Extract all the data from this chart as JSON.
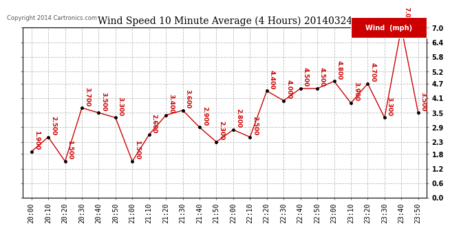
{
  "title": "Wind Speed 10 Minute Average (4 Hours) 20140324",
  "copyright": "Copyright 2014 Cartronics.com",
  "legend_label": "Wind  (mph)",
  "legend_bg": "#cc0000",
  "legend_fg": "#ffffff",
  "x_labels": [
    "20:00",
    "20:10",
    "20:20",
    "20:30",
    "20:40",
    "20:50",
    "21:00",
    "21:10",
    "21:20",
    "21:30",
    "21:40",
    "21:50",
    "22:00",
    "22:10",
    "22:20",
    "22:30",
    "22:40",
    "22:50",
    "23:00",
    "23:10",
    "23:20",
    "23:30",
    "23:40",
    "23:50"
  ],
  "values": [
    1.9,
    2.5,
    1.5,
    3.7,
    3.5,
    3.3,
    1.5,
    2.6,
    3.4,
    3.6,
    2.9,
    2.3,
    2.8,
    2.5,
    4.4,
    4.0,
    4.5,
    4.5,
    4.8,
    3.9,
    4.7,
    3.3,
    7.0,
    3.5
  ],
  "annotations": [
    "1.900",
    "2.500",
    "1.500",
    "3.700",
    "3.500",
    "3.300",
    "1.500",
    "2.600",
    "3.400",
    "3.600",
    "2.900",
    "2.300",
    "2.800",
    "2.500",
    "4.400",
    "4.000",
    "4.500",
    "4.500",
    "4.800",
    "3.900",
    "4.700",
    "3.300",
    "7.000",
    "3.500"
  ],
  "line_color": "#cc0000",
  "marker_color": "#000000",
  "annotation_color": "#cc0000",
  "ylim": [
    0.0,
    7.0
  ],
  "yticks": [
    0.0,
    0.6,
    1.2,
    1.8,
    2.3,
    2.9,
    3.5,
    4.1,
    4.7,
    5.2,
    5.8,
    6.4,
    7.0
  ],
  "bg_color": "#ffffff",
  "grid_color": "#bbbbbb",
  "title_fontsize": 10,
  "annotation_fontsize": 6.5,
  "axis_fontsize": 7
}
